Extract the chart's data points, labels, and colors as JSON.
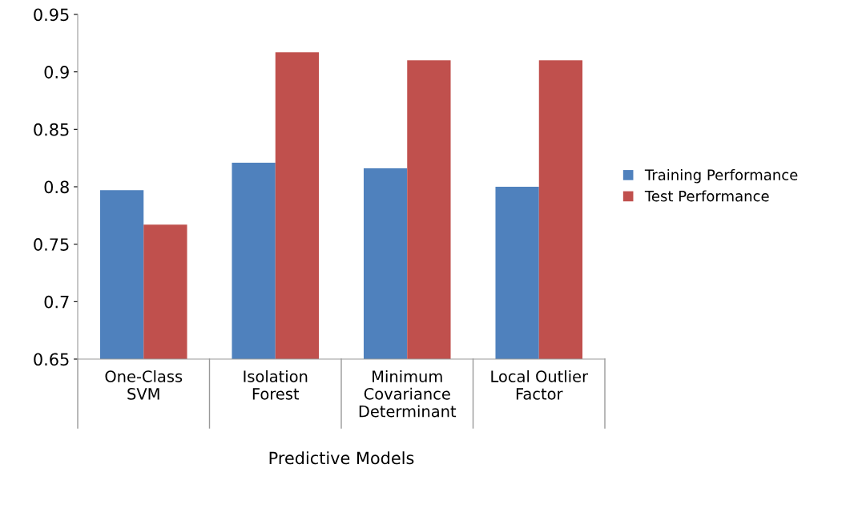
{
  "chart_data": {
    "type": "bar",
    "categories": [
      "One-Class\nSVM",
      "Isolation\nForest",
      "Minimum\nCovariance\nDeterminant",
      "Local Outlier\nFactor"
    ],
    "series": [
      {
        "name": "Training Performance",
        "color": "#4f81bd",
        "values": [
          0.797,
          0.821,
          0.816,
          0.8
        ]
      },
      {
        "name": "Test Performance",
        "color": "#c0504d",
        "values": [
          0.767,
          0.917,
          0.91,
          0.91
        ]
      }
    ],
    "xlabel": "Predictive Models",
    "ylim": [
      0.65,
      0.95
    ],
    "yticks": [
      0.65,
      0.7,
      0.75,
      0.8,
      0.85,
      0.9,
      0.95
    ],
    "grid": false,
    "legend": "right"
  }
}
